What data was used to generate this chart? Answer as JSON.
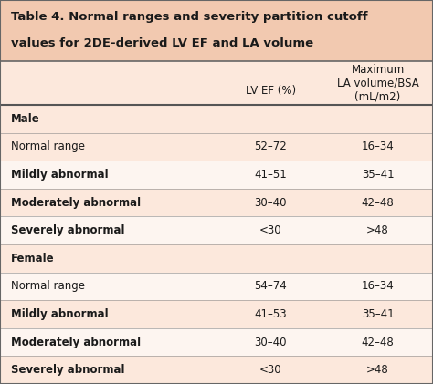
{
  "title_line1": "Table 4. Normal ranges and severity partition cutoff",
  "title_line2": "values for 2DE-derived LV EF and LA volume",
  "title_bg": "#f2c9b0",
  "row_bg_light": "#fce8dc",
  "row_bg_white": "#fdf5f0",
  "col2_header_line1": "LV EF (%)",
  "col3_header_line1": "Maximum",
  "col3_header_line2": "LA volume/BSA",
  "col3_header_line3": "(mL/m2)",
  "rows": [
    {
      "label": "Male",
      "lv_ef": "",
      "la_vol": "",
      "label_bold": true,
      "section_header": true
    },
    {
      "label": "Normal range",
      "lv_ef": "52–72",
      "la_vol": "16–34",
      "label_bold": false,
      "section_header": false
    },
    {
      "label": "Mildly abnormal",
      "lv_ef": "41–51",
      "la_vol": "35–41",
      "label_bold": true,
      "section_header": false
    },
    {
      "label": "Moderately abnormal",
      "lv_ef": "30–40",
      "la_vol": "42–48",
      "label_bold": true,
      "section_header": false
    },
    {
      "label": "Severely abnormal",
      "lv_ef": "<30",
      "la_vol": ">48",
      "label_bold": true,
      "section_header": false
    },
    {
      "label": "Female",
      "lv_ef": "",
      "la_vol": "",
      "label_bold": true,
      "section_header": true
    },
    {
      "label": "Normal range",
      "lv_ef": "54–74",
      "la_vol": "16–34",
      "label_bold": false,
      "section_header": false
    },
    {
      "label": "Mildly abnormal",
      "lv_ef": "41–53",
      "la_vol": "35–41",
      "label_bold": true,
      "section_header": false
    },
    {
      "label": "Moderately abnormal",
      "lv_ef": "30–40",
      "la_vol": "42–48",
      "label_bold": true,
      "section_header": false
    },
    {
      "label": "Severely abnormal",
      "lv_ef": "<30",
      "la_vol": ">48",
      "label_bold": true,
      "section_header": false
    }
  ],
  "text_color": "#1a1a1a",
  "border_color": "#888888",
  "figsize": [
    4.74,
    4.21
  ],
  "dpi": 100
}
